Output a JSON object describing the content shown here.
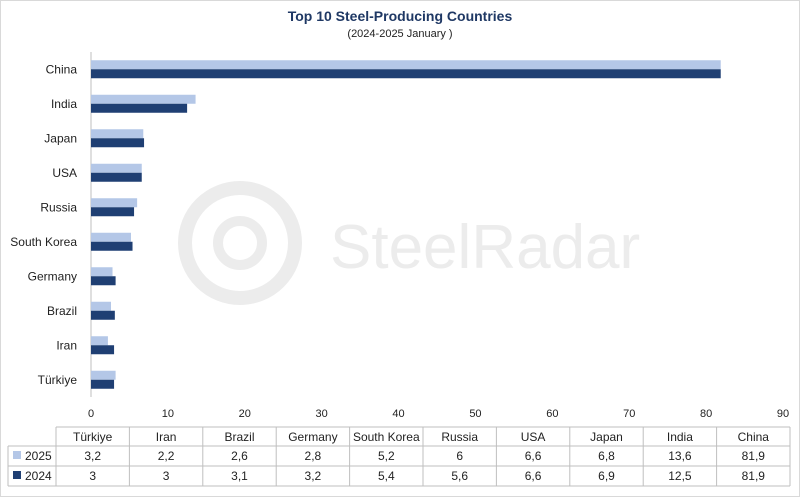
{
  "header": {
    "title": "Top 10 Steel-Producing Countries",
    "subtitle": "(2024-2025 January )"
  },
  "watermark": {
    "text": "SteelRadar"
  },
  "colors": {
    "series_2025": "#b4c7e7",
    "series_2024": "#1f3f73",
    "title": "#1f3864"
  },
  "chart_data": {
    "type": "bar",
    "orientation": "horizontal",
    "title": "Top 10 Steel-Producing Countries",
    "subtitle": "(2024-2025 January )",
    "categories": [
      "Türkiye",
      "Iran",
      "Brazil",
      "Germany",
      "South Korea",
      "Russia",
      "USA",
      "Japan",
      "India",
      "China"
    ],
    "series": [
      {
        "name": "2025",
        "values": [
          3.2,
          2.2,
          2.6,
          2.8,
          5.2,
          6,
          6.6,
          6.8,
          13.6,
          81.9
        ],
        "labels": [
          "3,2",
          "2,2",
          "2,6",
          "2,8",
          "5,2",
          "6",
          "6,6",
          "6,8",
          "13,6",
          "81,9"
        ]
      },
      {
        "name": "2024",
        "values": [
          3,
          3,
          3.1,
          3.2,
          5.4,
          5.6,
          6.6,
          6.9,
          12.5,
          81.9
        ],
        "labels": [
          "3",
          "3",
          "3,1",
          "3,2",
          "5,4",
          "5,6",
          "6,6",
          "6,9",
          "12,5",
          "81,9"
        ]
      }
    ],
    "xlim": [
      0,
      90
    ],
    "xticks": [
      0,
      10,
      20,
      30,
      40,
      50,
      60,
      70,
      80,
      90
    ],
    "grid": false,
    "legend": "data table below chart"
  }
}
